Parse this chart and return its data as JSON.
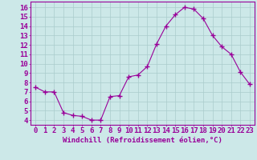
{
  "x": [
    0,
    1,
    2,
    3,
    4,
    5,
    6,
    7,
    8,
    9,
    10,
    11,
    12,
    13,
    14,
    15,
    16,
    17,
    18,
    19,
    20,
    21,
    22,
    23
  ],
  "y": [
    7.5,
    7.0,
    7.0,
    4.8,
    4.5,
    4.4,
    4.0,
    4.0,
    6.5,
    6.6,
    8.6,
    8.8,
    9.7,
    12.1,
    14.0,
    15.2,
    16.0,
    15.8,
    14.8,
    13.0,
    11.8,
    11.0,
    9.1,
    7.8
  ],
  "line_color": "#990099",
  "marker": "+",
  "marker_size": 4,
  "bg_color": "#cce8e8",
  "grid_color": "#aacccc",
  "ylabel_ticks": [
    4,
    5,
    6,
    7,
    8,
    9,
    10,
    11,
    12,
    13,
    14,
    15,
    16
  ],
  "xlabel": "Windchill (Refroidissement éolien,°C)",
  "xlabel_fontsize": 6.5,
  "tick_fontsize": 6.5,
  "ylim": [
    3.5,
    16.6
  ],
  "xlim": [
    -0.5,
    23.5
  ]
}
